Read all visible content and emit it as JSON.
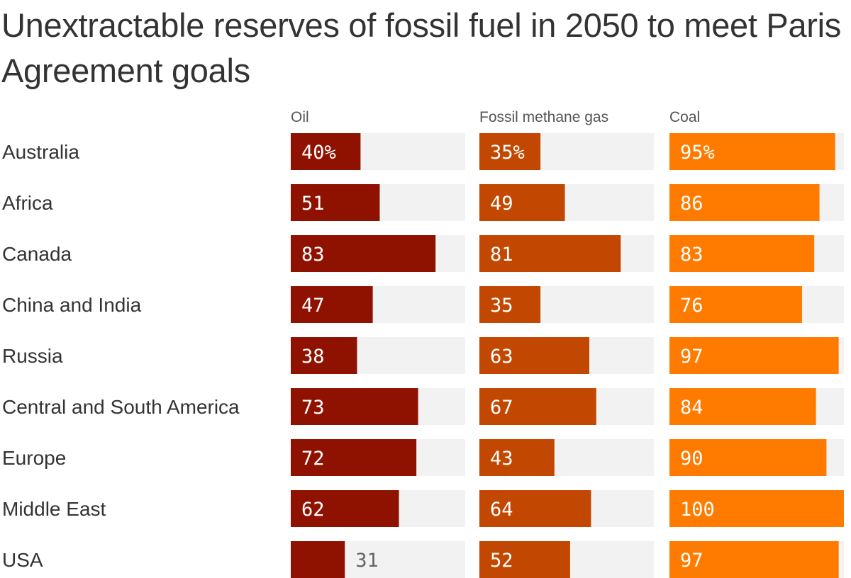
{
  "title": "Unextractable reserves of fossil fuel in 2050 to meet Paris Agreement goals",
  "colors": {
    "oil": "#8f1200",
    "gas": "#c24700",
    "coal": "#ff7b00",
    "track": "#f2f2f2"
  },
  "chart_data": {
    "type": "bar",
    "orientation": "horizontal",
    "layout": "small-multiples",
    "categories": [
      "Australia",
      "Africa",
      "Canada",
      "China and India",
      "Russia",
      "Central and South America",
      "Europe",
      "Middle East",
      "USA"
    ],
    "series": [
      {
        "name": "Oil",
        "values": [
          40,
          51,
          83,
          47,
          38,
          73,
          72,
          62,
          31
        ],
        "color": "#8f1200"
      },
      {
        "name": "Fossil methane gas",
        "values": [
          35,
          49,
          81,
          35,
          63,
          67,
          43,
          64,
          52
        ],
        "color": "#c24700"
      },
      {
        "name": "Coal",
        "values": [
          95,
          86,
          83,
          76,
          97,
          84,
          90,
          100,
          97
        ],
        "color": "#ff7b00"
      }
    ],
    "value_labels": [
      [
        "40%",
        "51",
        "83",
        "47",
        "38",
        "73",
        "72",
        "62",
        "31"
      ],
      [
        "35%",
        "49",
        "81",
        "35",
        "63",
        "67",
        "43",
        "64",
        "52"
      ],
      [
        "95%",
        "86",
        "83",
        "76",
        "97",
        "84",
        "90",
        "100",
        "97"
      ]
    ],
    "xlim": [
      0,
      100
    ],
    "unit": "%",
    "grid": false,
    "legend": "none"
  }
}
